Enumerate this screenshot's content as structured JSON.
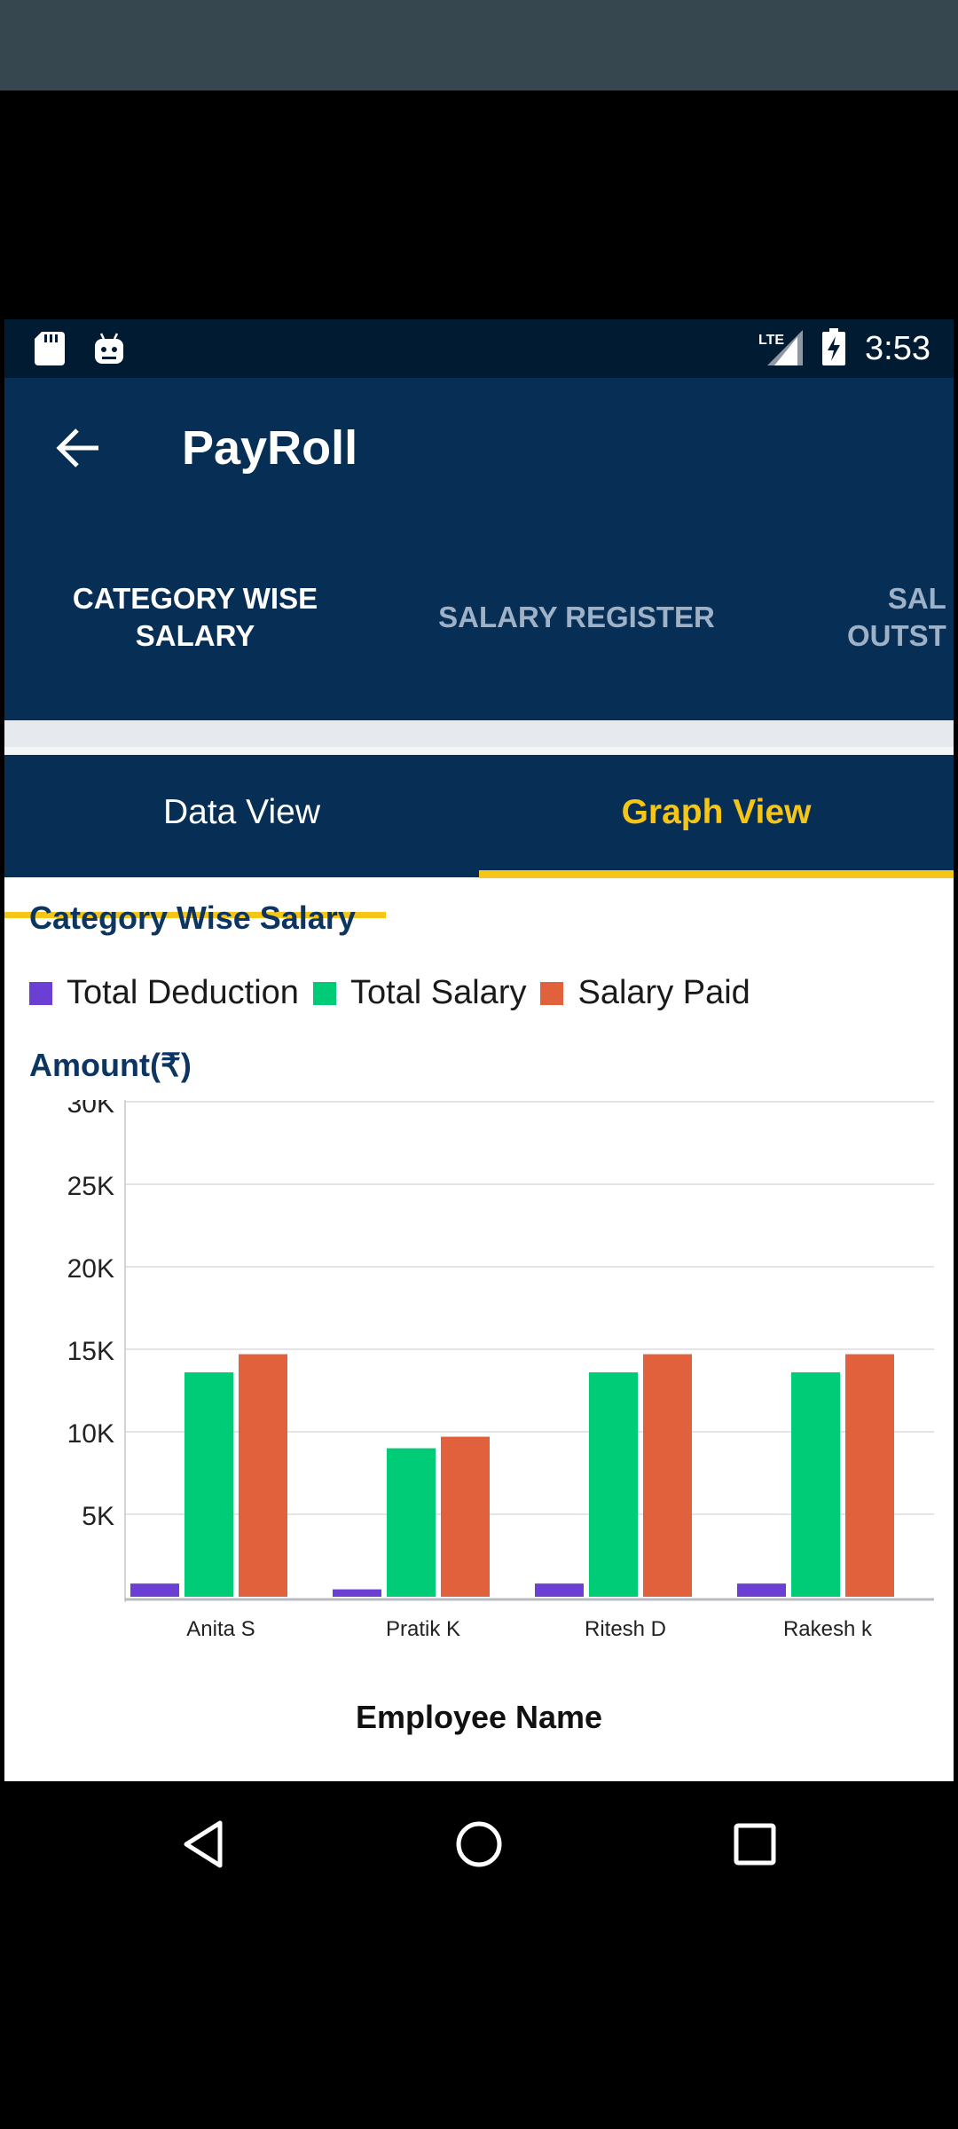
{
  "status_bar": {
    "time": "3:53",
    "network": "LTE",
    "icons": [
      "sd-card-icon",
      "android-debug-icon",
      "lte-signal-icon",
      "battery-charging-icon"
    ]
  },
  "app_bar": {
    "title": "PayRoll",
    "back_icon": "arrow-left-icon"
  },
  "tabs": [
    {
      "label": "CATEGORY WISE\nSALARY",
      "selected": true
    },
    {
      "label": "SALARY REGISTER",
      "selected": false
    },
    {
      "label": "SAL\nOUTST",
      "selected": false
    }
  ],
  "sub_tabs": [
    {
      "label": "Data View",
      "selected": false
    },
    {
      "label": "Graph View",
      "selected": true
    }
  ],
  "colors": {
    "primary": "#072f55",
    "status_bar": "#011b33",
    "accent": "#f5c518",
    "total_deduction": "#6b3fd4",
    "total_salary": "#00cc77",
    "salary_paid": "#e2613d"
  },
  "chart": {
    "title": "Category Wise Salary",
    "y_axis_title": "Amount(₹)",
    "x_axis_title": "Employee Name"
  },
  "chart_data": {
    "type": "bar",
    "title": "Category Wise Salary",
    "xlabel": "Employee Name",
    "ylabel": "Amount(₹)",
    "categories": [
      "Anita S",
      "Pratik K",
      "Ritesh D",
      "Rakesh k"
    ],
    "series": [
      {
        "name": "Total Deduction",
        "color": "#6b3fd4",
        "values": [
          800,
          450,
          800,
          800
        ]
      },
      {
        "name": "Total Salary",
        "color": "#00cc77",
        "values": [
          13600,
          9000,
          13600,
          13600
        ]
      },
      {
        "name": "Salary Paid",
        "color": "#e2613d",
        "values": [
          14700,
          9700,
          14700,
          14700
        ]
      }
    ],
    "ylim": [
      0,
      30000
    ],
    "y_ticks": [
      5000,
      10000,
      15000,
      20000,
      25000,
      30000
    ],
    "y_tick_labels": [
      "5K",
      "10K",
      "15K",
      "20K",
      "25K",
      "30K"
    ],
    "grid": true,
    "legend_position": "top-left"
  },
  "nav_bar": {
    "buttons": [
      "nav-back-icon",
      "nav-home-icon",
      "nav-recents-icon"
    ]
  }
}
